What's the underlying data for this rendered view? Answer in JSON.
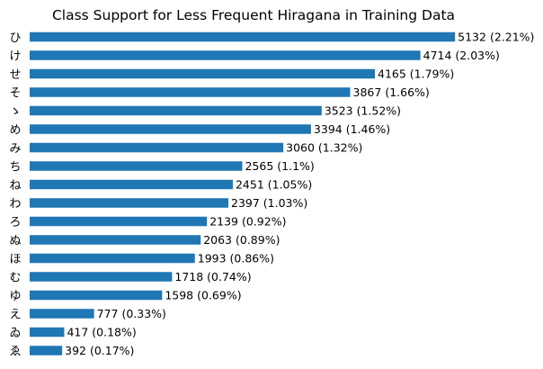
{
  "chart_data": {
    "type": "bar",
    "orientation": "horizontal",
    "title": "Class Support for Less Frequent Hiragana in Training Data",
    "xlabel": "",
    "ylabel": "",
    "grid": false,
    "bar_color": "#1f77b4",
    "categories": [
      "ひ",
      "け",
      "せ",
      "そ",
      "ゝ",
      "め",
      "み",
      "ち",
      "ね",
      "わ",
      "ろ",
      "ぬ",
      "ほ",
      "む",
      "ゆ",
      "え",
      "ゐ",
      "ゑ"
    ],
    "values": [
      5132,
      4714,
      4165,
      3867,
      3523,
      3394,
      3060,
      2565,
      2451,
      2397,
      2139,
      2063,
      1993,
      1718,
      1598,
      777,
      417,
      392
    ],
    "data_labels": [
      "5132 (2.21%)",
      "4714 (2.03%)",
      "4165 (1.79%)",
      "3867 (1.66%)",
      "3523 (1.52%)",
      "3394 (1.46%)",
      "3060 (1.32%)",
      "2565 (1.1%)",
      "2451 (1.05%)",
      "2397 (1.03%)",
      "2139 (0.92%)",
      "2063 (0.89%)",
      "1993 (0.86%)",
      "1718 (0.74%)",
      "1598 (0.69%)",
      "777 (0.33%)",
      "417 (0.18%)",
      "392 (0.17%)"
    ]
  }
}
